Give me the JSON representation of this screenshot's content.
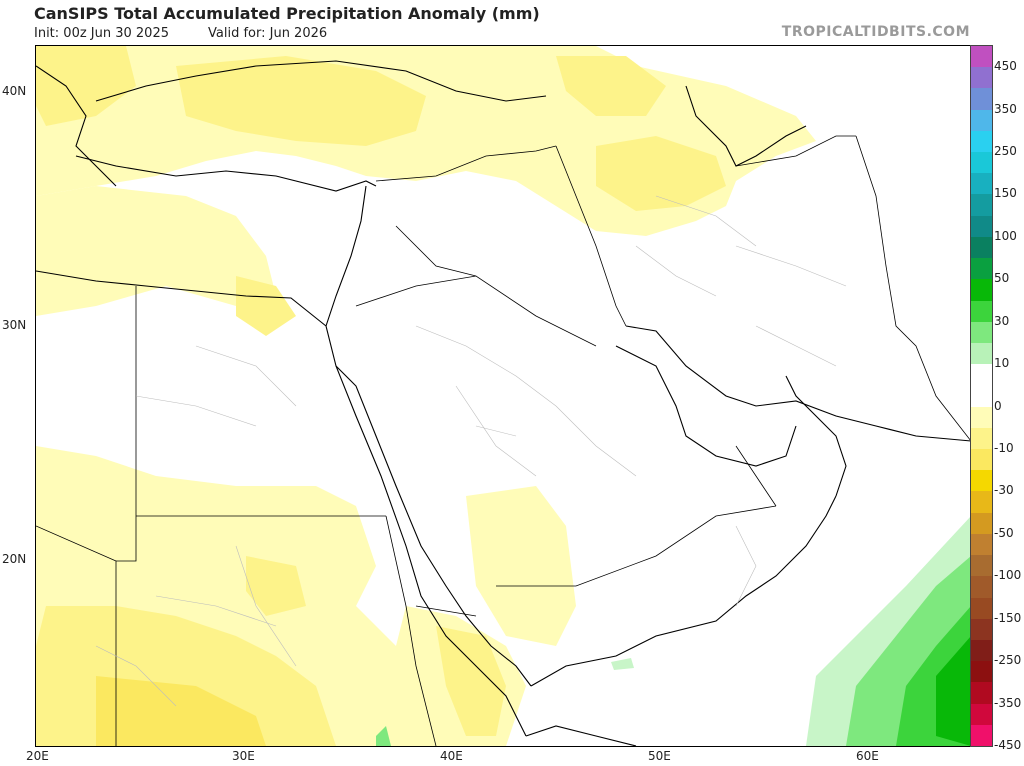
{
  "header": {
    "title": "CanSIPS Total Accumulated Precipitation Anomaly (mm)",
    "init": "Init: 00z Jun 30 2025",
    "valid": "Valid for: Jun 2026",
    "watermark": "TROPICALTIDBITS.COM"
  },
  "map": {
    "lat_labels": [
      "40N",
      "30N",
      "20N"
    ],
    "lon_labels": [
      "20E",
      "30E",
      "40E",
      "50E",
      "60E"
    ],
    "colors": {
      "light_yellow": "#fffcb8",
      "yellow": "#fdf38a",
      "deep_yellow": "#fbe860",
      "light_green": "#c8f5c8",
      "mid_green": "#7ee87e",
      "green": "#3cd43c",
      "deep_green": "#08b808"
    }
  },
  "colorbar": {
    "labels": [
      "450",
      "350",
      "250",
      "150",
      "100",
      "50",
      "30",
      "10",
      "0",
      "-10",
      "-30",
      "-50",
      "-100",
      "-150",
      "-250",
      "-350",
      "-450"
    ],
    "colors": [
      "#c050c0",
      "#9070d0",
      "#6f90d8",
      "#4fb7ea",
      "#2ad0f0",
      "#1ac8d8",
      "#18b0c0",
      "#149ca0",
      "#108a88",
      "#0a8060",
      "#0aa040",
      "#08b808",
      "#3cd43c",
      "#7ee87e",
      "#b8f2b8",
      "#ffffff",
      "#ffffff",
      "#fffcb8",
      "#fdf38a",
      "#fbe860",
      "#f5d800",
      "#e8b818",
      "#d49a20",
      "#c08030",
      "#a86c30",
      "#a05a2a",
      "#984a22",
      "#8c3420",
      "#801e18",
      "#8c1010",
      "#b00a20",
      "#d0083c",
      "#f0106a"
    ]
  }
}
